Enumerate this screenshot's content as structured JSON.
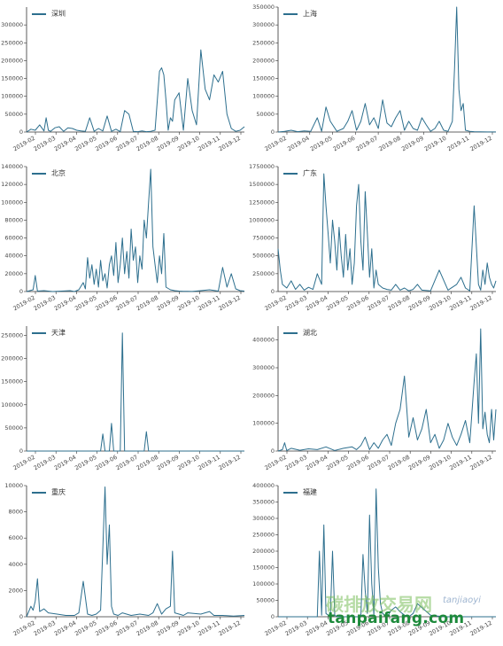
{
  "watermark": {
    "cn": "碳排放交易网",
    "tag": "tanjiaoyi",
    "brand": "tanpaifang.com"
  },
  "colors": {
    "line": "#2d6f8e",
    "accent": "#e38b3a",
    "axis": "#333333"
  },
  "chart_data": [
    {
      "type": "line",
      "legend": "深圳",
      "ylim": [
        0,
        350000
      ],
      "yticks": [
        0,
        50000,
        100000,
        150000,
        200000,
        250000,
        300000
      ],
      "yticklabels": [
        "0",
        "50000",
        "100000",
        "150000",
        "200000",
        "250000",
        "300000"
      ],
      "xticks": [
        "2019-02",
        "2019-03",
        "2019-04",
        "2019-05",
        "2019-06",
        "2019-07",
        "2019-08",
        "2019-09",
        "2019-10",
        "2019-11",
        "2019-12"
      ],
      "series": [
        {
          "name": "深圳",
          "x": [
            0,
            2,
            4,
            6,
            8,
            9,
            10,
            11,
            13,
            15,
            17,
            19,
            21,
            23,
            25,
            27,
            29,
            31,
            33,
            35,
            37,
            39,
            41,
            43,
            45,
            47,
            49,
            51,
            53,
            55,
            57,
            59,
            61,
            62,
            63,
            64,
            65,
            66,
            67,
            68,
            70,
            72,
            74,
            76,
            78,
            80,
            82,
            84,
            86,
            88,
            90,
            92,
            94,
            96,
            98,
            100
          ],
          "y": [
            0,
            8000,
            5000,
            20000,
            3000,
            40000,
            5000,
            2000,
            12000,
            15000,
            2000,
            12000,
            10000,
            5000,
            3000,
            2000,
            40000,
            2000,
            10000,
            3000,
            45000,
            2000,
            8000,
            1000,
            60000,
            50000,
            2000,
            1000,
            3000,
            1000,
            2000,
            5000,
            170000,
            180000,
            160000,
            90000,
            5000,
            40000,
            30000,
            90000,
            110000,
            5000,
            150000,
            60000,
            20000,
            230000,
            120000,
            90000,
            160000,
            140000,
            170000,
            50000,
            10000,
            2000,
            5000,
            15000
          ]
        }
      ]
    },
    {
      "type": "line",
      "legend": "上海",
      "ylim": [
        0,
        350000
      ],
      "yticks": [
        0,
        50000,
        100000,
        150000,
        200000,
        250000,
        300000,
        350000
      ],
      "yticklabels": [
        "0",
        "50000",
        "100000",
        "150000",
        "200000",
        "250000",
        "300000",
        "350000"
      ],
      "xticks": [
        "2019-02",
        "2019-04",
        "2019-05",
        "2019-06",
        "2019-07",
        "2019-08",
        "2019-09",
        "2019-10",
        "2019-11",
        "2019-12"
      ],
      "series": [
        {
          "name": "上海",
          "x": [
            0,
            3,
            6,
            9,
            12,
            15,
            18,
            20,
            22,
            24,
            27,
            30,
            32,
            34,
            36,
            38,
            40,
            42,
            44,
            46,
            48,
            50,
            52,
            54,
            56,
            58,
            60,
            62,
            64,
            66,
            68,
            70,
            72,
            74,
            76,
            78,
            80,
            81,
            82,
            83,
            84,
            85,
            86,
            88,
            90,
            93,
            96,
            100
          ],
          "y": [
            0,
            2000,
            5000,
            1000,
            3000,
            2000,
            40000,
            2000,
            70000,
            30000,
            2000,
            10000,
            30000,
            60000,
            5000,
            30000,
            80000,
            20000,
            40000,
            10000,
            90000,
            25000,
            15000,
            40000,
            60000,
            5000,
            30000,
            10000,
            5000,
            40000,
            20000,
            2000,
            10000,
            30000,
            5000,
            2000,
            30000,
            180000,
            350000,
            120000,
            60000,
            80000,
            5000,
            2000,
            1000,
            500,
            300,
            200
          ]
        }
      ]
    },
    {
      "type": "line",
      "legend": "北京",
      "ylim": [
        0,
        140000
      ],
      "yticks": [
        0,
        20000,
        40000,
        60000,
        80000,
        100000,
        120000,
        140000
      ],
      "yticklabels": [
        "0",
        "20000",
        "40000",
        "60000",
        "80000",
        "100000",
        "120000",
        "140000"
      ],
      "xticks": [
        "2019-02",
        "2019-03",
        "2019-04",
        "2019-05",
        "2019-06",
        "2019-07",
        "2019-08",
        "2019-09",
        "2019-10",
        "2019-11",
        "2019-12"
      ],
      "series": [
        {
          "name": "北京",
          "x": [
            0,
            3,
            4,
            5,
            8,
            12,
            16,
            20,
            22,
            24,
            26,
            27,
            28,
            29,
            30,
            31,
            32,
            33,
            34,
            35,
            36,
            37,
            38,
            39,
            40,
            41,
            42,
            43,
            44,
            45,
            46,
            47,
            48,
            49,
            50,
            51,
            52,
            53,
            54,
            55,
            56,
            57,
            58,
            59,
            60,
            61,
            62,
            63,
            64,
            66,
            68,
            70,
            72,
            74,
            76,
            80,
            84,
            88,
            90,
            92,
            94,
            96,
            98,
            100
          ],
          "y": [
            0,
            2000,
            18000,
            500,
            1000,
            0,
            500,
            1000,
            0,
            2000,
            10000,
            3000,
            38000,
            15000,
            30000,
            8000,
            25000,
            5000,
            35000,
            12000,
            20000,
            4000,
            30000,
            40000,
            18000,
            55000,
            10000,
            30000,
            60000,
            20000,
            45000,
            15000,
            70000,
            35000,
            50000,
            10000,
            40000,
            25000,
            80000,
            60000,
            100000,
            137000,
            50000,
            30000,
            10000,
            40000,
            20000,
            65000,
            5000,
            2000,
            1000,
            500,
            300,
            200,
            100,
            1000,
            2000,
            500,
            27000,
            5000,
            20000,
            3000,
            1000,
            500
          ]
        }
      ]
    },
    {
      "type": "line",
      "legend": "广东",
      "ylim": [
        0,
        1750000
      ],
      "yticks": [
        0,
        250000,
        500000,
        750000,
        1000000,
        1250000,
        1500000,
        1750000
      ],
      "yticklabels": [
        "0",
        "250000",
        "500000",
        "750000",
        "1000000",
        "1250000",
        "1500000",
        "1750000"
      ],
      "xticks": [
        "2019-02",
        "2019-03",
        "2019-04",
        "2019-05",
        "2019-06",
        "2019-07",
        "2019-08",
        "2019-09",
        "2019-10",
        "2019-11",
        "2019-12"
      ],
      "series": [
        {
          "name": "广东",
          "x": [
            0,
            1,
            2,
            4,
            6,
            8,
            10,
            12,
            14,
            16,
            18,
            20,
            21,
            22,
            23,
            24,
            25,
            26,
            27,
            28,
            29,
            30,
            31,
            32,
            33,
            34,
            35,
            36,
            37,
            38,
            39,
            40,
            41,
            42,
            43,
            44,
            45,
            46,
            48,
            50,
            52,
            54,
            56,
            58,
            60,
            62,
            64,
            66,
            70,
            74,
            78,
            82,
            84,
            86,
            88,
            90,
            92,
            93,
            94,
            95,
            96,
            97,
            98,
            99,
            100
          ],
          "y": [
            600000,
            300000,
            100000,
            50000,
            150000,
            30000,
            100000,
            20000,
            60000,
            30000,
            250000,
            100000,
            1650000,
            1200000,
            800000,
            400000,
            1000000,
            700000,
            300000,
            900000,
            500000,
            200000,
            800000,
            300000,
            600000,
            100000,
            400000,
            1200000,
            1500000,
            700000,
            300000,
            1400000,
            800000,
            200000,
            600000,
            50000,
            300000,
            100000,
            50000,
            30000,
            20000,
            100000,
            20000,
            50000,
            10000,
            30000,
            100000,
            20000,
            10000,
            300000,
            20000,
            100000,
            200000,
            50000,
            10000,
            1200000,
            100000,
            20000,
            300000,
            100000,
            400000,
            200000,
            100000,
            50000,
            150000
          ]
        }
      ]
    },
    {
      "type": "line",
      "legend": "天津",
      "ylim": [
        0,
        270000
      ],
      "yticks": [
        0,
        50000,
        100000,
        150000,
        200000,
        250000
      ],
      "yticklabels": [
        "0",
        "50000",
        "100000",
        "150000",
        "200000",
        "250000"
      ],
      "xticks": [
        "2019-02",
        "2019-03",
        "2019-04",
        "2019-05",
        "2019-06",
        "2019-07",
        "2019-08",
        "2019-09",
        "2019-10",
        "2019-11",
        "2019-12"
      ],
      "series": [
        {
          "name": "天津",
          "x": [
            0,
            30,
            34,
            35,
            36,
            37,
            38,
            39,
            40,
            41,
            42,
            43,
            44,
            45,
            46,
            47,
            50,
            54,
            55,
            56,
            57,
            60,
            80,
            100
          ],
          "y": [
            0,
            0,
            0,
            37000,
            0,
            0,
            0,
            60000,
            0,
            0,
            0,
            0,
            255000,
            0,
            0,
            0,
            0,
            0,
            42000,
            0,
            0,
            0,
            0,
            0
          ]
        }
      ]
    },
    {
      "type": "line",
      "legend": "湖北",
      "ylim": [
        0,
        450000
      ],
      "yticks": [
        0,
        100000,
        200000,
        300000,
        400000
      ],
      "yticklabels": [
        "0",
        "100000",
        "200000",
        "300000",
        "400000"
      ],
      "xticks": [
        "2019-02",
        "2019-03",
        "2019-04",
        "2019-05",
        "2019-06",
        "2019-07",
        "2019-08",
        "2019-09",
        "2019-10",
        "2019-11",
        "2019-12"
      ],
      "series": [
        {
          "name": "湖北",
          "x": [
            0,
            2,
            3,
            4,
            6,
            10,
            14,
            18,
            22,
            26,
            30,
            34,
            36,
            38,
            40,
            42,
            44,
            46,
            48,
            50,
            52,
            54,
            56,
            58,
            60,
            62,
            64,
            66,
            68,
            70,
            72,
            74,
            76,
            78,
            80,
            82,
            84,
            86,
            88,
            90,
            91,
            92,
            93,
            94,
            95,
            96,
            97,
            98,
            99,
            100
          ],
          "y": [
            0,
            5000,
            30000,
            2000,
            10000,
            3000,
            8000,
            5000,
            15000,
            2000,
            10000,
            15000,
            5000,
            20000,
            50000,
            5000,
            30000,
            10000,
            40000,
            60000,
            20000,
            100000,
            150000,
            270000,
            50000,
            120000,
            40000,
            80000,
            150000,
            30000,
            60000,
            10000,
            40000,
            100000,
            50000,
            20000,
            60000,
            110000,
            30000,
            250000,
            350000,
            100000,
            440000,
            80000,
            140000,
            60000,
            30000,
            150000,
            40000,
            150000
          ]
        }
      ]
    },
    {
      "type": "line",
      "legend": "重庆",
      "ylim": [
        0,
        10000
      ],
      "yticks": [
        0,
        2000,
        4000,
        6000,
        8000,
        10000
      ],
      "yticklabels": [
        "0",
        "2000",
        "4000",
        "6000",
        "8000",
        "10000"
      ],
      "xticks": [
        "2019-02",
        "2019-03",
        "2019-04",
        "2019-05",
        "2019-06",
        "2019-07",
        "2019-08",
        "2019-09",
        "2019-10",
        "2019-11",
        "2019-12"
      ],
      "series": [
        {
          "name": "重庆",
          "x": [
            0,
            2,
            3,
            4,
            5,
            6,
            8,
            10,
            14,
            18,
            22,
            24,
            26,
            28,
            30,
            32,
            34,
            36,
            37,
            38,
            39,
            40,
            42,
            44,
            48,
            52,
            56,
            58,
            60,
            62,
            64,
            66,
            67,
            68,
            70,
            72,
            74,
            80,
            84,
            86,
            90,
            95,
            100
          ],
          "y": [
            0,
            800,
            500,
            1200,
            2900,
            400,
            600,
            300,
            200,
            100,
            100,
            300,
            2700,
            200,
            100,
            200,
            500,
            9900,
            4000,
            7000,
            800,
            200,
            100,
            300,
            100,
            200,
            100,
            300,
            1000,
            200,
            600,
            800,
            5000,
            300,
            200,
            100,
            300,
            200,
            400,
            100,
            100,
            50,
            100
          ]
        }
      ]
    },
    {
      "type": "line",
      "legend": "福建",
      "ylim": [
        0,
        400000
      ],
      "yticks": [
        0,
        50000,
        100000,
        150000,
        200000,
        250000,
        300000,
        350000,
        400000
      ],
      "yticklabels": [
        "0",
        "50000",
        "100000",
        "150000",
        "200000",
        "250000",
        "300000",
        "350000",
        "400000"
      ],
      "xticks": [
        "2019-02",
        "2019-03",
        "2019-04",
        "2019-05",
        "2019-06",
        "2019-07",
        "2019-08",
        "2019-09",
        "2019-10",
        "2019-11",
        "2019-12"
      ],
      "series": [
        {
          "name": "福建",
          "x": [
            0,
            10,
            18,
            19,
            20,
            21,
            22,
            24,
            25,
            26,
            27,
            28,
            32,
            38,
            39,
            40,
            41,
            42,
            43,
            44,
            45,
            46,
            47,
            48,
            49,
            50,
            52,
            54,
            56,
            58,
            60,
            62,
            64,
            70,
            76,
            80,
            82,
            86,
            90,
            95,
            100
          ],
          "y": [
            0,
            0,
            0,
            200000,
            5000,
            280000,
            10000,
            0,
            200000,
            5000,
            0,
            0,
            0,
            0,
            190000,
            80000,
            10000,
            310000,
            100000,
            5000,
            390000,
            150000,
            40000,
            10000,
            5000,
            0,
            20000,
            30000,
            15000,
            5000,
            0,
            10000,
            40000,
            5000,
            0,
            0,
            0,
            0,
            0,
            0,
            0
          ]
        }
      ]
    }
  ]
}
